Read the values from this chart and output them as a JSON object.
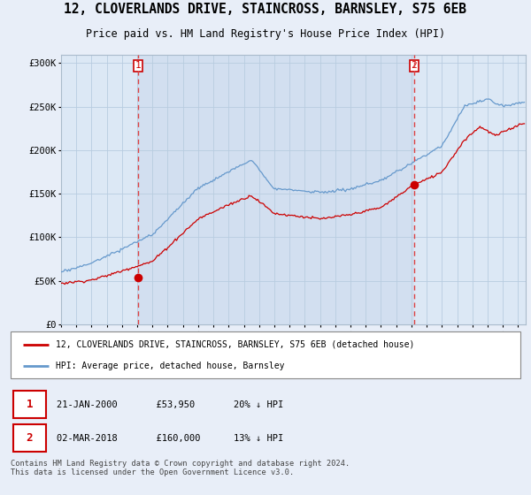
{
  "title": "12, CLOVERLANDS DRIVE, STAINCROSS, BARNSLEY, S75 6EB",
  "subtitle": "Price paid vs. HM Land Registry's House Price Index (HPI)",
  "sale1_date": "21-JAN-2000",
  "sale1_price": 53950,
  "sale1_label": "20% ↓ HPI",
  "sale2_date": "02-MAR-2018",
  "sale2_price": 160000,
  "sale2_label": "13% ↓ HPI",
  "legend1": "12, CLOVERLANDS DRIVE, STAINCROSS, BARNSLEY, S75 6EB (detached house)",
  "legend2": "HPI: Average price, detached house, Barnsley",
  "footer": "Contains HM Land Registry data © Crown copyright and database right 2024.\nThis data is licensed under the Open Government Licence v3.0.",
  "hpi_color": "#6699cc",
  "price_color": "#cc0000",
  "vline_color": "#dd4444",
  "bg_color": "#e8eef8",
  "plot_bg": "#dce8f5",
  "shaded_bg": "#dce8f5",
  "grid_color": "#b0c4d8",
  "ylim": [
    0,
    310000
  ],
  "yticks": [
    0,
    50000,
    100000,
    150000,
    200000,
    250000,
    300000
  ],
  "xlim_start": 1995.0,
  "xlim_end": 2025.5
}
